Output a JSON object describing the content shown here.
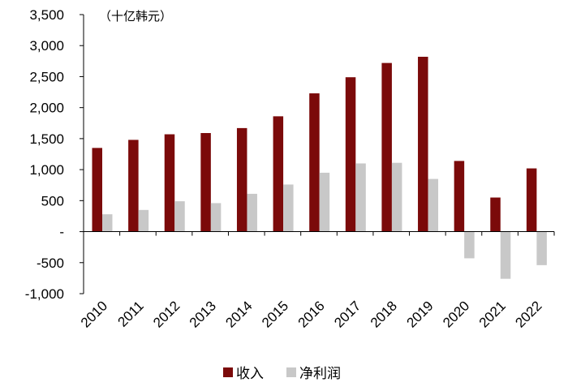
{
  "chart_data": {
    "type": "bar",
    "unit": "（十亿韩元）",
    "categories": [
      "2010",
      "2011",
      "2012",
      "2013",
      "2014",
      "2015",
      "2016",
      "2017",
      "2018",
      "2019",
      "2020",
      "2021",
      "2022"
    ],
    "series": [
      {
        "name": "收入",
        "color": "#7b0a0a",
        "values": [
          1350,
          1480,
          1570,
          1590,
          1670,
          1860,
          2230,
          2490,
          2720,
          2820,
          1140,
          550,
          1020
        ]
      },
      {
        "name": "净利润",
        "color": "#c8c8c8",
        "values": [
          280,
          350,
          490,
          460,
          610,
          760,
          950,
          1100,
          1110,
          850,
          -430,
          -760,
          -540
        ]
      }
    ],
    "yaxis": {
      "min": -1000,
      "max": 3500,
      "ticks": [
        3500,
        3000,
        2500,
        2000,
        1500,
        1000,
        500,
        0,
        -500,
        -1000
      ],
      "tick_labels": [
        "3,500",
        "3,000",
        "2,500",
        "2,000",
        "1,500",
        "1,000",
        "500",
        "-",
        "-500",
        "-1,000"
      ]
    },
    "grid": false,
    "legend_position": "bottom"
  }
}
